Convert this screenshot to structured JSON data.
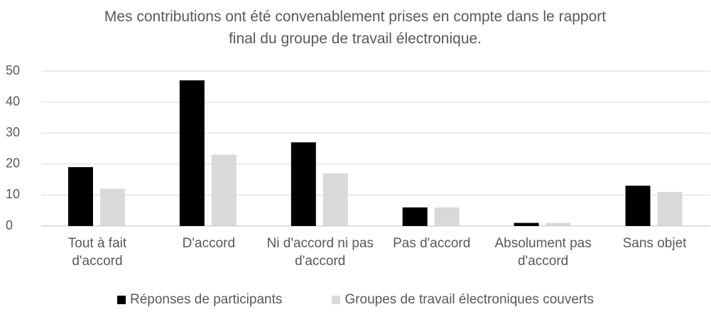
{
  "chart_data": {
    "type": "bar",
    "title": "Mes contributions ont été convenablement prises en compte dans le rapport final du groupe de travail électronique.",
    "categories": [
      "Tout à fait d'accord",
      "D'accord",
      "Ni d'accord ni pas d'accord",
      "Pas d'accord",
      "Absolument pas d'accord",
      "Sans objet"
    ],
    "series": [
      {
        "name": "Réponses de participants",
        "color": "#000000",
        "values": [
          19,
          47,
          27,
          6,
          1,
          13
        ]
      },
      {
        "name": "Groupes de travail électroniques couverts",
        "color": "#d9d9d9",
        "values": [
          12,
          23,
          17,
          6,
          1,
          11
        ]
      }
    ],
    "ylim": [
      0,
      50
    ],
    "yticks": [
      0,
      10,
      20,
      30,
      40,
      50
    ],
    "grid": true,
    "legend": "bottom"
  }
}
